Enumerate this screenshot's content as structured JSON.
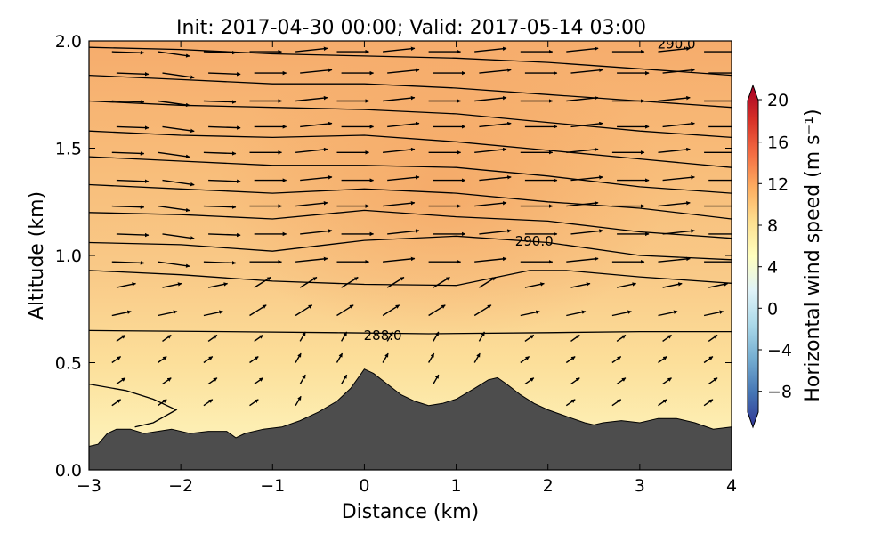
{
  "chart_data": {
    "type": "heatmap",
    "title": "Init: 2017-04-30 00:00; Valid: 2017-05-14 03:00",
    "xlabel": "Distance (km)",
    "ylabel": "Altitude (km)",
    "xlim": [
      -3,
      4
    ],
    "ylim": [
      0,
      2
    ],
    "xticks": [
      "−3",
      "−2",
      "−1",
      "0",
      "1",
      "2",
      "3",
      "4"
    ],
    "yticks": [
      "0.0",
      "0.5",
      "1.0",
      "1.5",
      "2.0"
    ],
    "colorbar": {
      "label": "Horizontal wind speed (m s⁻¹)",
      "range": [
        -10,
        20
      ],
      "ticks": [
        "20",
        "16",
        "12",
        "8",
        "4",
        "0",
        "−4",
        "−8"
      ],
      "tick_values": [
        20,
        16,
        12,
        8,
        4,
        0,
        -4,
        -8
      ],
      "colormap": [
        "#313695",
        "#4575b4",
        "#74add1",
        "#abd9e9",
        "#e0f3f8",
        "#ffffbf",
        "#fee090",
        "#fdae61",
        "#f46d43",
        "#d73027",
        "#a50026"
      ]
    },
    "contour_labels": [
      {
        "text": "288.0",
        "x": 0.2,
        "y": 0.63
      },
      {
        "text": "290.0",
        "x": 1.85,
        "y": 1.07
      },
      {
        "text": "290.0",
        "x": 3.4,
        "y": 1.99
      }
    ],
    "terrain": [
      [
        -3,
        0.11
      ],
      [
        -2.9,
        0.12
      ],
      [
        -2.8,
        0.17
      ],
      [
        -2.7,
        0.19
      ],
      [
        -2.55,
        0.19
      ],
      [
        -2.4,
        0.17
      ],
      [
        -2.25,
        0.18
      ],
      [
        -2.1,
        0.19
      ],
      [
        -1.9,
        0.17
      ],
      [
        -1.7,
        0.18
      ],
      [
        -1.5,
        0.18
      ],
      [
        -1.4,
        0.15
      ],
      [
        -1.3,
        0.17
      ],
      [
        -1.1,
        0.19
      ],
      [
        -0.9,
        0.2
      ],
      [
        -0.7,
        0.23
      ],
      [
        -0.5,
        0.27
      ],
      [
        -0.3,
        0.32
      ],
      [
        -0.15,
        0.38
      ],
      [
        -0.05,
        0.44
      ],
      [
        0.0,
        0.47
      ],
      [
        0.1,
        0.45
      ],
      [
        0.25,
        0.4
      ],
      [
        0.4,
        0.35
      ],
      [
        0.55,
        0.32
      ],
      [
        0.7,
        0.3
      ],
      [
        0.85,
        0.31
      ],
      [
        1.0,
        0.33
      ],
      [
        1.2,
        0.38
      ],
      [
        1.35,
        0.42
      ],
      [
        1.45,
        0.43
      ],
      [
        1.55,
        0.4
      ],
      [
        1.7,
        0.35
      ],
      [
        1.85,
        0.31
      ],
      [
        2.0,
        0.28
      ],
      [
        2.2,
        0.25
      ],
      [
        2.4,
        0.22
      ],
      [
        2.5,
        0.21
      ],
      [
        2.6,
        0.22
      ],
      [
        2.8,
        0.23
      ],
      [
        3.0,
        0.22
      ],
      [
        3.2,
        0.24
      ],
      [
        3.4,
        0.24
      ],
      [
        3.6,
        0.22
      ],
      [
        3.8,
        0.19
      ],
      [
        4.0,
        0.2
      ]
    ],
    "isentropes": [
      [
        [
          -3,
          0.65
        ],
        [
          -1.5,
          0.645
        ],
        [
          -0.3,
          0.64
        ],
        [
          0.7,
          0.635
        ],
        [
          2.0,
          0.64
        ],
        [
          3.0,
          0.645
        ],
        [
          4,
          0.645
        ]
      ],
      [
        [
          -3,
          0.93
        ],
        [
          -2,
          0.91
        ],
        [
          -1,
          0.88
        ],
        [
          0,
          0.865
        ],
        [
          1.0,
          0.86
        ],
        [
          1.8,
          0.93
        ],
        [
          2.2,
          0.93
        ],
        [
          3.0,
          0.9
        ],
        [
          4,
          0.87
        ]
      ],
      [
        [
          -3,
          1.06
        ],
        [
          -2,
          1.05
        ],
        [
          -1,
          1.02
        ],
        [
          0,
          1.07
        ],
        [
          1,
          1.09
        ],
        [
          2,
          1.06
        ],
        [
          3,
          1.0
        ],
        [
          4,
          0.98
        ]
      ],
      [
        [
          -3,
          1.2
        ],
        [
          -2,
          1.19
        ],
        [
          -1,
          1.17
        ],
        [
          0,
          1.21
        ],
        [
          1,
          1.18
        ],
        [
          2,
          1.16
        ],
        [
          3,
          1.11
        ],
        [
          4,
          1.08
        ]
      ],
      [
        [
          -3,
          1.33
        ],
        [
          -2,
          1.31
        ],
        [
          -1,
          1.29
        ],
        [
          0,
          1.31
        ],
        [
          1,
          1.29
        ],
        [
          2,
          1.25
        ],
        [
          3,
          1.22
        ],
        [
          4,
          1.17
        ]
      ],
      [
        [
          -3,
          1.46
        ],
        [
          -2,
          1.44
        ],
        [
          -1,
          1.42
        ],
        [
          0,
          1.42
        ],
        [
          1,
          1.41
        ],
        [
          2,
          1.37
        ],
        [
          3,
          1.32
        ],
        [
          4,
          1.29
        ]
      ],
      [
        [
          -3,
          1.58
        ],
        [
          -2,
          1.56
        ],
        [
          -1,
          1.55
        ],
        [
          0,
          1.56
        ],
        [
          1,
          1.53
        ],
        [
          2,
          1.49
        ],
        [
          3,
          1.45
        ],
        [
          4,
          1.41
        ]
      ],
      [
        [
          -3,
          1.72
        ],
        [
          -2,
          1.7
        ],
        [
          -1,
          1.69
        ],
        [
          0,
          1.68
        ],
        [
          1,
          1.66
        ],
        [
          2,
          1.62
        ],
        [
          3,
          1.58
        ],
        [
          4,
          1.55
        ]
      ],
      [
        [
          -3,
          1.84
        ],
        [
          -2,
          1.82
        ],
        [
          -1,
          1.8
        ],
        [
          0,
          1.8
        ],
        [
          1,
          1.78
        ],
        [
          2,
          1.75
        ],
        [
          3,
          1.72
        ],
        [
          4,
          1.69
        ]
      ],
      [
        [
          -3,
          1.97
        ],
        [
          -2,
          1.96
        ],
        [
          -1,
          1.94
        ],
        [
          0,
          1.93
        ],
        [
          1,
          1.92
        ],
        [
          2,
          1.9
        ],
        [
          3,
          1.87
        ],
        [
          4,
          1.84
        ]
      ],
      [
        [
          -3,
          0.4
        ],
        [
          -2.6,
          0.37
        ],
        [
          -2.3,
          0.33
        ],
        [
          -2.05,
          0.28
        ],
        [
          -2.3,
          0.22
        ],
        [
          -2.5,
          0.2
        ]
      ]
    ],
    "wind_arrows": {
      "x": [
        -2.7,
        -2.2,
        -1.7,
        -1.2,
        -0.7,
        -0.25,
        0.25,
        0.75,
        1.25,
        1.75,
        2.25,
        2.75,
        3.25,
        3.75
      ],
      "y": [
        1.95,
        1.85,
        1.72,
        1.6,
        1.48,
        1.35,
        1.23,
        1.1,
        0.97,
        0.85,
        0.72,
        0.6,
        0.5,
        0.4,
        0.3
      ],
      "note": "sample of displayed wind field"
    }
  }
}
